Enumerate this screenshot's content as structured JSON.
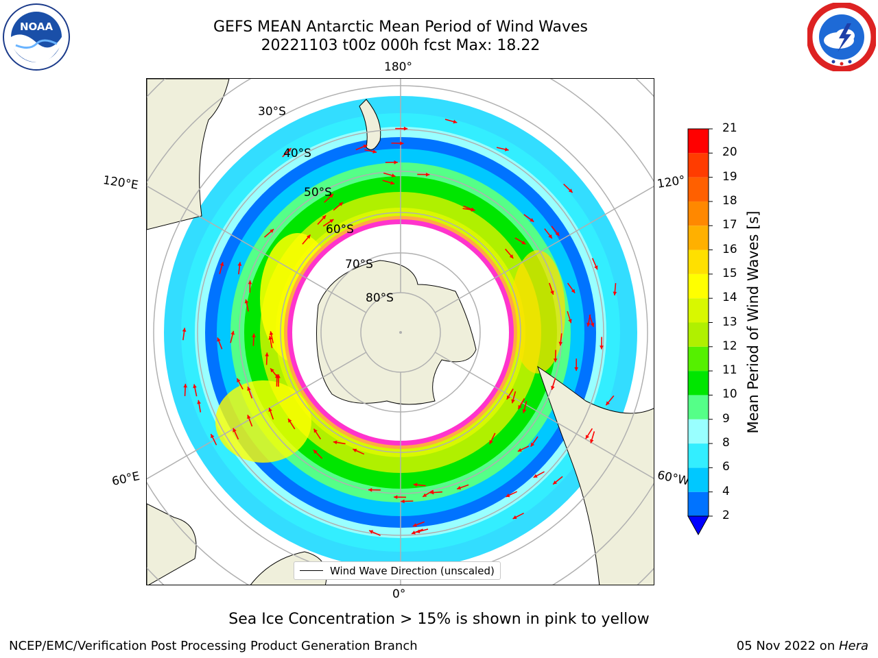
{
  "title_line1": "GEFS MEAN Antarctic Mean Period of Wind Waves",
  "title_line2": "20221103 t00z 000h fcst   Max: 18.22",
  "logos": {
    "noaa": {
      "icon": "noaa-logo",
      "text": "NOAA"
    },
    "nws": {
      "icon": "national-weather-service-logo"
    }
  },
  "map": {
    "projection": "south-polar-stereographic",
    "longitude_labels": {
      "top": "180°",
      "bottom": "0°",
      "left_upper": "120°E",
      "left_lower": "60°E",
      "right_upper": "120°",
      "right_lower": "60°W"
    },
    "latitude_labels": [
      "30°S",
      "40°S",
      "50°S",
      "60°S",
      "70°S",
      "80°S"
    ],
    "latitude_rings_deg": [
      80,
      70,
      60,
      50,
      40,
      30,
      20,
      10
    ],
    "meridian_spacing_deg": 60,
    "colors": {
      "land": "#efefdb",
      "ice_inner": "#ffffff",
      "ice_edge": "#ff33cc",
      "ice_low": "#ffaa44",
      "arrow": "#ff0000",
      "grid": "#b0b0b0"
    }
  },
  "colorbar": {
    "label": "Mean Period of Wind Waves [s]",
    "ticks": [
      "2",
      "4",
      "6",
      "8",
      "9",
      "10",
      "11",
      "12",
      "13",
      "14",
      "15",
      "16",
      "17",
      "18",
      "19",
      "20",
      "21"
    ],
    "colors": [
      "#0073ff",
      "#00c8ff",
      "#33eeff",
      "#99ffff",
      "#55ff88",
      "#00e600",
      "#55f000",
      "#b0f000",
      "#d8f800",
      "#ffff00",
      "#ffe000",
      "#ffb000",
      "#ff8800",
      "#ff6000",
      "#ff3c00",
      "#ff0000"
    ],
    "extend_color": "#0000ff"
  },
  "legend": {
    "label": "Wind Wave Direction (unscaled)"
  },
  "note": "Sea Ice Concentration > 15% is shown in pink to yellow",
  "footer": {
    "left": "NCEP/EMC/Verification Post Processing Product Generation Branch",
    "date": "05 Nov 2022 on ",
    "machine": "Hera"
  }
}
